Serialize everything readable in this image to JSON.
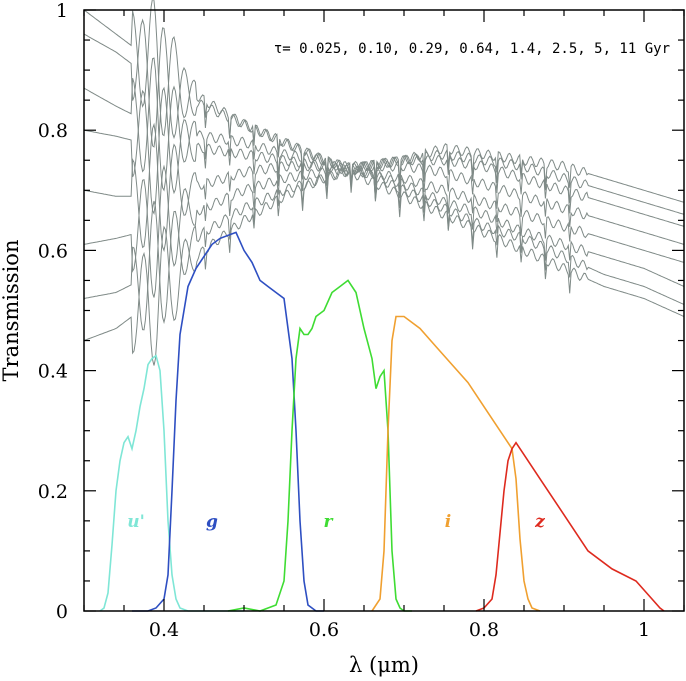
{
  "chart_data": {
    "type": "line",
    "title": "",
    "xlabel": "λ (μm)",
    "ylabel": "Transmission",
    "xlim": [
      0.3,
      1.05
    ],
    "ylim": [
      0,
      1
    ],
    "x_ticks": [
      0.4,
      0.6,
      0.8,
      1.0
    ],
    "x_tick_labels": [
      "0.4",
      "0.6",
      "0.8",
      "1"
    ],
    "y_ticks": [
      0,
      0.2,
      0.4,
      0.6,
      0.8,
      1.0
    ],
    "y_tick_labels": [
      "0",
      "0.2",
      "0.4",
      "0.6",
      "0.8",
      "1"
    ],
    "annotation": "τ= 0.025, 0.10, 0.29, 0.64, 1.4, 2.5, 5, 11 Gyr",
    "colors": {
      "spectra": "#7f8a87",
      "u": "#7fe6d6",
      "g": "#2e4fc2",
      "r": "#3fdc33",
      "i": "#f0a030",
      "z": "#de2a1e"
    },
    "filters": [
      {
        "name": "u'",
        "label": "u'",
        "color_key": "u",
        "label_x": 0.365,
        "label_y": 0.15,
        "x": [
          0.32,
          0.325,
          0.33,
          0.335,
          0.34,
          0.345,
          0.35,
          0.355,
          0.36,
          0.365,
          0.37,
          0.375,
          0.38,
          0.385,
          0.39,
          0.395,
          0.4,
          0.405,
          0.41,
          0.415,
          0.42,
          0.43,
          0.44,
          0.5
        ],
        "y": [
          0.0,
          0.005,
          0.03,
          0.11,
          0.2,
          0.25,
          0.28,
          0.29,
          0.27,
          0.3,
          0.34,
          0.37,
          0.41,
          0.42,
          0.425,
          0.4,
          0.3,
          0.15,
          0.06,
          0.02,
          0.005,
          0.0,
          0.0,
          0.0
        ]
      },
      {
        "name": "g",
        "label": "g",
        "color_key": "g",
        "label_x": 0.46,
        "label_y": 0.15,
        "x": [
          0.36,
          0.38,
          0.39,
          0.4,
          0.405,
          0.41,
          0.415,
          0.42,
          0.43,
          0.44,
          0.45,
          0.46,
          0.47,
          0.48,
          0.49,
          0.5,
          0.51,
          0.52,
          0.53,
          0.54,
          0.55,
          0.56,
          0.565,
          0.57,
          0.575,
          0.58,
          0.59,
          0.6
        ],
        "y": [
          0.0,
          0.0,
          0.005,
          0.02,
          0.06,
          0.2,
          0.35,
          0.46,
          0.54,
          0.57,
          0.59,
          0.61,
          0.62,
          0.625,
          0.63,
          0.6,
          0.58,
          0.55,
          0.54,
          0.53,
          0.52,
          0.42,
          0.3,
          0.15,
          0.05,
          0.01,
          0.0,
          0.0
        ]
      },
      {
        "name": "r",
        "label": "r",
        "color_key": "r",
        "label_x": 0.605,
        "label_y": 0.15,
        "x": [
          0.48,
          0.5,
          0.52,
          0.53,
          0.54,
          0.55,
          0.555,
          0.56,
          0.565,
          0.57,
          0.575,
          0.58,
          0.585,
          0.59,
          0.6,
          0.61,
          0.62,
          0.63,
          0.64,
          0.65,
          0.66,
          0.665,
          0.67,
          0.675,
          0.68,
          0.685,
          0.69,
          0.695,
          0.7,
          0.71
        ],
        "y": [
          0.0,
          0.005,
          0.0,
          0.005,
          0.01,
          0.05,
          0.15,
          0.3,
          0.42,
          0.47,
          0.46,
          0.46,
          0.47,
          0.49,
          0.5,
          0.53,
          0.54,
          0.55,
          0.53,
          0.47,
          0.42,
          0.37,
          0.39,
          0.4,
          0.3,
          0.1,
          0.02,
          0.005,
          0.0,
          0.0
        ]
      },
      {
        "name": "i",
        "label": "i",
        "color_key": "i",
        "label_x": 0.755,
        "label_y": 0.15,
        "x": [
          0.66,
          0.67,
          0.675,
          0.68,
          0.685,
          0.69,
          0.7,
          0.72,
          0.74,
          0.76,
          0.78,
          0.8,
          0.82,
          0.835,
          0.84,
          0.845,
          0.85,
          0.855,
          0.86,
          0.87
        ],
        "y": [
          0.0,
          0.02,
          0.1,
          0.3,
          0.45,
          0.49,
          0.49,
          0.47,
          0.44,
          0.41,
          0.38,
          0.34,
          0.3,
          0.27,
          0.22,
          0.12,
          0.05,
          0.02,
          0.005,
          0.0
        ]
      },
      {
        "name": "z",
        "label": "z",
        "color_key": "z",
        "label_x": 0.87,
        "label_y": 0.15,
        "x": [
          0.79,
          0.8,
          0.81,
          0.815,
          0.82,
          0.825,
          0.83,
          0.835,
          0.84,
          0.85,
          0.87,
          0.9,
          0.93,
          0.96,
          0.99,
          1.01,
          1.02,
          1.025
        ],
        "y": [
          0.0,
          0.005,
          0.02,
          0.06,
          0.13,
          0.2,
          0.25,
          0.27,
          0.28,
          0.26,
          0.22,
          0.16,
          0.1,
          0.07,
          0.05,
          0.02,
          0.005,
          0.0
        ]
      }
    ],
    "spectra": [
      {
        "name": "tau-0.025-gyr",
        "x": [
          0.3,
          0.34,
          0.37,
          0.4,
          0.45,
          0.5,
          0.55,
          0.6,
          0.65,
          0.7,
          0.75,
          0.8,
          0.85,
          0.9,
          0.95,
          1.0,
          1.05
        ],
        "y": [
          1.0,
          0.96,
          0.93,
          0.89,
          0.85,
          0.81,
          0.78,
          0.75,
          0.72,
          0.69,
          0.66,
          0.63,
          0.6,
          0.57,
          0.54,
          0.52,
          0.49
        ]
      },
      {
        "name": "tau-0.10-gyr",
        "x": [
          0.3,
          0.34,
          0.37,
          0.4,
          0.45,
          0.5,
          0.55,
          0.6,
          0.65,
          0.7,
          0.75,
          0.8,
          0.85,
          0.9,
          0.95,
          1.0,
          1.05
        ],
        "y": [
          0.96,
          0.93,
          0.9,
          0.87,
          0.84,
          0.81,
          0.78,
          0.75,
          0.73,
          0.7,
          0.67,
          0.64,
          0.62,
          0.59,
          0.56,
          0.54,
          0.51
        ]
      },
      {
        "name": "tau-0.29-gyr",
        "x": [
          0.3,
          0.34,
          0.37,
          0.4,
          0.45,
          0.5,
          0.55,
          0.6,
          0.65,
          0.7,
          0.75,
          0.8,
          0.85,
          0.9,
          0.95,
          1.0,
          1.05
        ],
        "y": [
          0.87,
          0.84,
          0.82,
          0.8,
          0.79,
          0.78,
          0.76,
          0.75,
          0.73,
          0.71,
          0.68,
          0.66,
          0.63,
          0.61,
          0.59,
          0.57,
          0.54
        ]
      },
      {
        "name": "tau-0.64-gyr",
        "x": [
          0.3,
          0.34,
          0.37,
          0.4,
          0.45,
          0.5,
          0.55,
          0.6,
          0.65,
          0.7,
          0.75,
          0.8,
          0.85,
          0.9,
          0.95,
          1.0,
          1.05
        ],
        "y": [
          0.8,
          0.79,
          0.78,
          0.77,
          0.77,
          0.76,
          0.75,
          0.74,
          0.73,
          0.72,
          0.7,
          0.68,
          0.66,
          0.64,
          0.62,
          0.6,
          0.58
        ]
      },
      {
        "name": "tau-1.4-gyr",
        "x": [
          0.3,
          0.34,
          0.37,
          0.4,
          0.45,
          0.5,
          0.55,
          0.6,
          0.65,
          0.7,
          0.75,
          0.8,
          0.85,
          0.9,
          0.95,
          1.0,
          1.05
        ],
        "y": [
          0.7,
          0.69,
          0.69,
          0.7,
          0.71,
          0.73,
          0.74,
          0.74,
          0.74,
          0.74,
          0.73,
          0.71,
          0.69,
          0.67,
          0.65,
          0.63,
          0.61
        ]
      },
      {
        "name": "tau-2.5-gyr",
        "x": [
          0.3,
          0.34,
          0.37,
          0.4,
          0.45,
          0.5,
          0.55,
          0.6,
          0.65,
          0.7,
          0.75,
          0.8,
          0.85,
          0.9,
          0.95,
          1.0,
          1.05
        ],
        "y": [
          0.61,
          0.62,
          0.63,
          0.64,
          0.67,
          0.7,
          0.72,
          0.73,
          0.74,
          0.75,
          0.75,
          0.74,
          0.72,
          0.7,
          0.68,
          0.66,
          0.64
        ]
      },
      {
        "name": "tau-5-gyr",
        "x": [
          0.3,
          0.34,
          0.37,
          0.4,
          0.45,
          0.5,
          0.55,
          0.6,
          0.65,
          0.7,
          0.75,
          0.8,
          0.85,
          0.9,
          0.95,
          1.0,
          1.05
        ],
        "y": [
          0.52,
          0.53,
          0.55,
          0.58,
          0.63,
          0.67,
          0.7,
          0.72,
          0.74,
          0.75,
          0.76,
          0.75,
          0.74,
          0.72,
          0.7,
          0.68,
          0.66
        ]
      },
      {
        "name": "tau-11-gyr",
        "x": [
          0.3,
          0.34,
          0.37,
          0.4,
          0.45,
          0.5,
          0.55,
          0.6,
          0.65,
          0.7,
          0.75,
          0.8,
          0.85,
          0.9,
          0.95,
          1.0,
          1.05
        ],
        "y": [
          0.45,
          0.47,
          0.5,
          0.54,
          0.6,
          0.65,
          0.69,
          0.72,
          0.74,
          0.75,
          0.77,
          0.76,
          0.75,
          0.74,
          0.72,
          0.7,
          0.68
        ]
      }
    ]
  }
}
